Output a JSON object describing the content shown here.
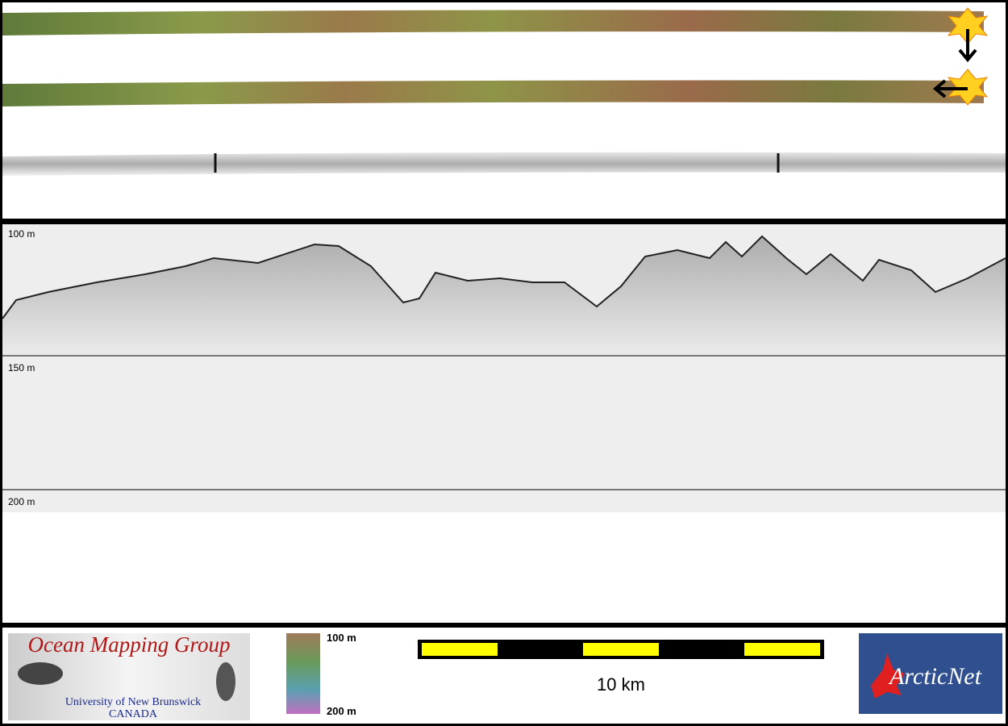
{
  "profile": {
    "depth_labels": [
      "100 m",
      "150 m",
      "200 m"
    ]
  },
  "colorbar": {
    "top_label": "100 m",
    "bottom_label": "200 m"
  },
  "scale_bar": {
    "label": "10 km"
  },
  "logos": {
    "omg_title": "Ocean Mapping Group",
    "omg_line1": "University of New Brunswick",
    "omg_line2": "CANADA",
    "arcticnet": "ArcticNet"
  }
}
